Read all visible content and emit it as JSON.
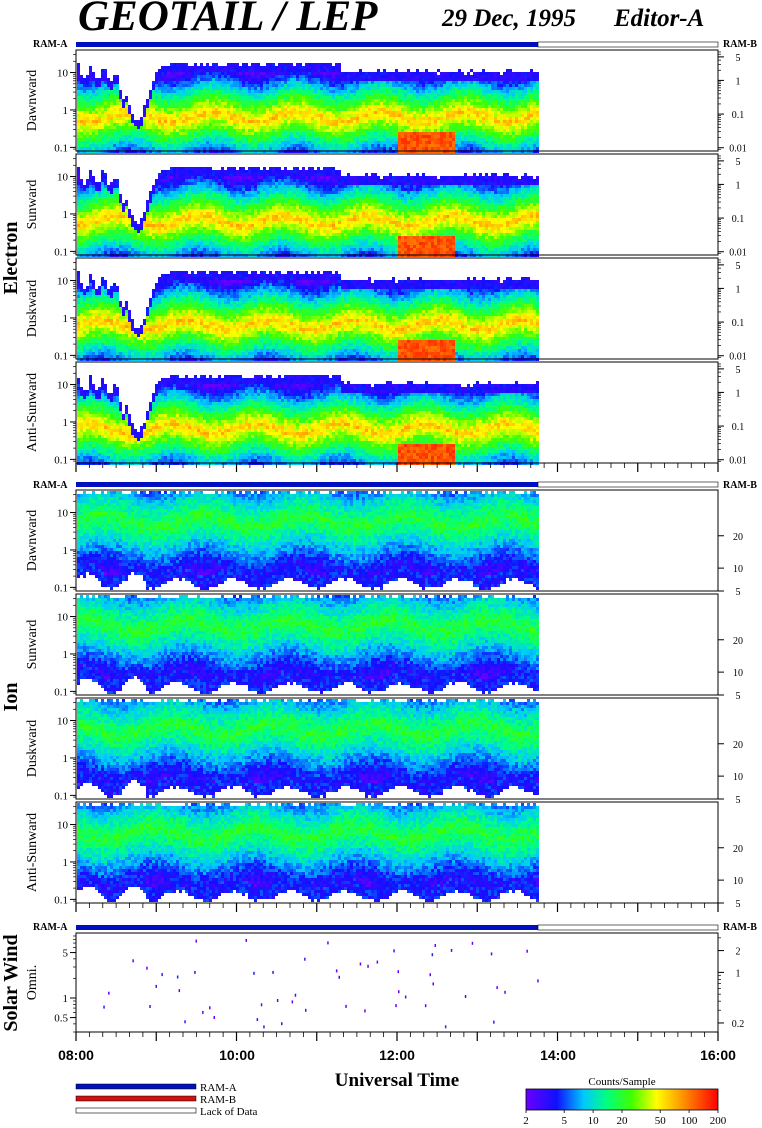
{
  "header": {
    "title": "GEOTAIL / LEP",
    "date": "29 Dec, 1995",
    "editor": "Editor-A"
  },
  "sections": [
    {
      "label": "Electron"
    },
    {
      "label": "Ion"
    },
    {
      "label": "Solar Wind"
    }
  ],
  "ram_labels": {
    "left": "RAM-A",
    "right": "RAM-B"
  },
  "legend": {
    "items": [
      {
        "label": "RAM-A",
        "color": "#0010c0"
      },
      {
        "label": "RAM-B",
        "color": "#d01010"
      },
      {
        "label": "Lack of Data",
        "color": "#ffffff"
      }
    ]
  },
  "colorbar": {
    "title": "Counts/Sample",
    "ticks": [
      "2",
      "5",
      "10",
      "20",
      "50",
      "100",
      "200"
    ],
    "tick_values": [
      2,
      5,
      10,
      20,
      50,
      100,
      200
    ],
    "range": [
      2,
      200
    ],
    "scale": "log"
  },
  "chart_data": {
    "type": "heatmap",
    "xlabel": "Universal Time",
    "x_ticks": [
      "08:00",
      "10:00",
      "12:00",
      "14:00",
      "16:00"
    ],
    "x_range_hours": [
      8,
      16
    ],
    "data_end_hour": 13.75,
    "panels": [
      {
        "group": "Electron",
        "ylabel": "Dawnward",
        "left_scale": "log",
        "left_ticks": [
          "10",
          "1",
          "0.1"
        ],
        "left_tick_values": [
          10,
          1,
          0.1
        ],
        "left_range": [
          0.08,
          40
        ],
        "right_scale": "log",
        "right_ticks": [
          "5",
          "1",
          "0.1",
          "0.01"
        ],
        "right_tick_values": [
          5,
          1,
          0.1,
          0.01
        ],
        "right_range": [
          0.008,
          8
        ]
      },
      {
        "group": "Electron",
        "ylabel": "Sunward",
        "left_scale": "log",
        "left_ticks": [
          "10",
          "1",
          "0.1"
        ],
        "left_tick_values": [
          10,
          1,
          0.1
        ],
        "left_range": [
          0.08,
          40
        ],
        "right_scale": "log",
        "right_ticks": [
          "5",
          "1",
          "0.1",
          "0.01"
        ],
        "right_tick_values": [
          5,
          1,
          0.1,
          0.01
        ],
        "right_range": [
          0.008,
          8
        ]
      },
      {
        "group": "Electron",
        "ylabel": "Duskward",
        "left_scale": "log",
        "left_ticks": [
          "10",
          "1",
          "0.1"
        ],
        "left_tick_values": [
          10,
          1,
          0.1
        ],
        "left_range": [
          0.08,
          40
        ],
        "right_scale": "log",
        "right_ticks": [
          "5",
          "1",
          "0.1",
          "0.01"
        ],
        "right_tick_values": [
          5,
          1,
          0.1,
          0.01
        ],
        "right_range": [
          0.008,
          8
        ]
      },
      {
        "group": "Electron",
        "ylabel": "Anti-Sunward",
        "left_scale": "log",
        "left_ticks": [
          "10",
          "1",
          "0.1"
        ],
        "left_tick_values": [
          10,
          1,
          0.1
        ],
        "left_range": [
          0.08,
          40
        ],
        "right_scale": "log",
        "right_ticks": [
          "5",
          "1",
          "0.1",
          "0.01"
        ],
        "right_tick_values": [
          5,
          1,
          0.1,
          0.01
        ],
        "right_range": [
          0.008,
          8
        ]
      },
      {
        "group": "Ion",
        "ylabel": "Dawnward",
        "left_scale": "log",
        "left_ticks": [
          "10",
          "1",
          "0.1"
        ],
        "left_tick_values": [
          10,
          1,
          0.1
        ],
        "left_range": [
          0.08,
          40
        ],
        "right_scale": "sqrt",
        "right_ticks": [
          "20",
          "10",
          "5"
        ],
        "right_tick_values": [
          20,
          10,
          5
        ],
        "right_range": [
          5,
          40
        ]
      },
      {
        "group": "Ion",
        "ylabel": "Sunward",
        "left_scale": "log",
        "left_ticks": [
          "10",
          "1",
          "0.1"
        ],
        "left_tick_values": [
          10,
          1,
          0.1
        ],
        "left_range": [
          0.08,
          40
        ],
        "right_scale": "sqrt",
        "right_ticks": [
          "20",
          "10",
          "5"
        ],
        "right_tick_values": [
          20,
          10,
          5
        ],
        "right_range": [
          5,
          40
        ]
      },
      {
        "group": "Ion",
        "ylabel": "Duskward",
        "left_scale": "log",
        "left_ticks": [
          "10",
          "1",
          "0.1"
        ],
        "left_tick_values": [
          10,
          1,
          0.1
        ],
        "left_range": [
          0.08,
          40
        ],
        "right_scale": "sqrt",
        "right_ticks": [
          "20",
          "10",
          "5"
        ],
        "right_tick_values": [
          20,
          10,
          5
        ],
        "right_range": [
          5,
          40
        ]
      },
      {
        "group": "Ion",
        "ylabel": "Anti-Sunward",
        "left_scale": "log",
        "left_ticks": [
          "10",
          "1",
          "0.1"
        ],
        "left_tick_values": [
          10,
          1,
          0.1
        ],
        "left_range": [
          0.08,
          40
        ],
        "right_scale": "sqrt",
        "right_ticks": [
          "20",
          "10",
          "5"
        ],
        "right_tick_values": [
          20,
          10,
          5
        ],
        "right_range": [
          5,
          40
        ]
      },
      {
        "group": "Solar Wind",
        "ylabel": "Omni.",
        "left_scale": "log",
        "left_ticks": [
          "5",
          "1",
          "0.5"
        ],
        "left_tick_values": [
          5,
          1,
          0.5
        ],
        "left_range": [
          0.3,
          10
        ],
        "right_scale": "log",
        "right_ticks": [
          "2",
          "1",
          "0.2"
        ],
        "right_tick_values": [
          2,
          1,
          0.2
        ],
        "right_range": [
          0.15,
          3.5
        ]
      }
    ]
  }
}
